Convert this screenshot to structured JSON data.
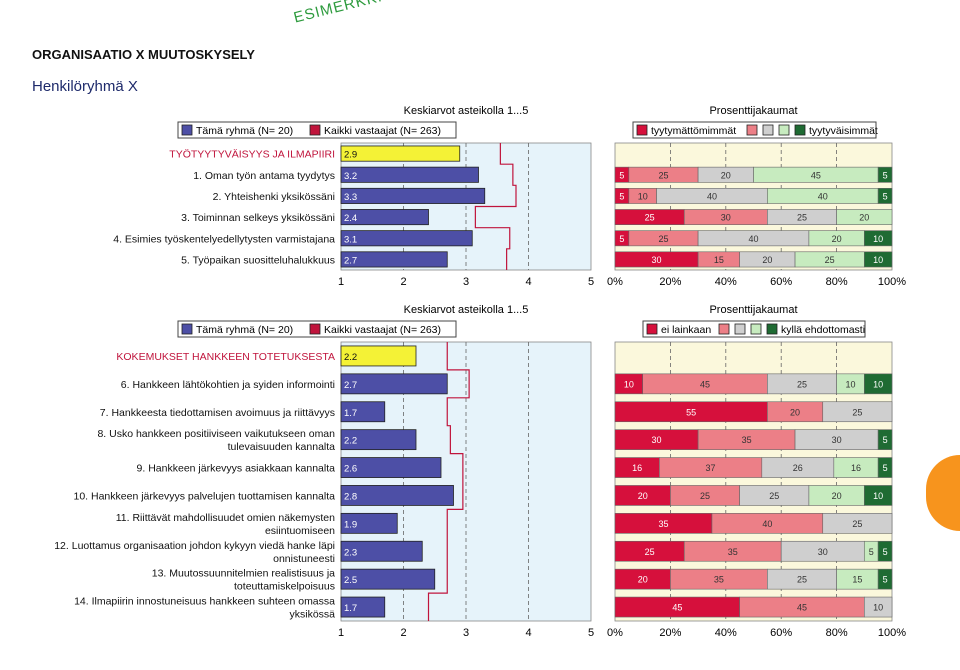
{
  "watermark": "ESIMERKKI",
  "title": "ORGANISAATIO X MUUTOSKYSELY",
  "subtitle": "Henkilöryhmä X",
  "colors": {
    "group_bar": "#4d4fa6",
    "section_bar": "#f4f236",
    "all_line": "#c0143c",
    "panel_bg": "#e6f3fa",
    "pct_panel_bg": "#fbf8dc",
    "seg1": "#d6103c",
    "seg2": "#ec7f87",
    "seg3": "#cfcfcf",
    "seg4": "#c7ebbf",
    "seg5": "#1f6b33"
  },
  "chart_data": [
    {
      "type": "bar",
      "title": "Keskiarvot asteikolla 1...5",
      "legend": [
        "Tämä ryhmä (N= 20)",
        "Kaikki vastaajat (N= 263)"
      ],
      "xlim": [
        1,
        5
      ],
      "ticks": [
        1,
        2,
        3,
        4,
        5
      ],
      "categories": [
        "TYÖTYYTYVÄISYYS JA ILMAPIIRI",
        "1. Oman työn antama tyydytys",
        "2. Yhteishenki yksikössäni",
        "3. Toiminnan selkeys yksikössäni",
        "4. Esimies työskentelyedellytysten varmistajana",
        "5. Työpaikan suositteluhalukkuus"
      ],
      "section_rows": [
        0
      ],
      "values": [
        2.9,
        3.2,
        3.3,
        2.4,
        3.1,
        2.7
      ],
      "all_respondents": [
        3.55,
        3.75,
        3.8,
        3.15,
        3.7,
        3.65
      ]
    },
    {
      "type": "bar",
      "stacked": true,
      "title": "Prosenttijakaumat",
      "legend": [
        "tyytymättömimmät",
        "",
        "",
        "",
        "tyytyväisimmät"
      ],
      "ticks": [
        "0%",
        "20%",
        "40%",
        "60%",
        "80%",
        "100%"
      ],
      "rows": [
        [],
        [
          5,
          25,
          20,
          45,
          5
        ],
        [
          5,
          10,
          40,
          40,
          5
        ],
        [
          25,
          30,
          25,
          20,
          0
        ],
        [
          5,
          25,
          40,
          20,
          10
        ],
        [
          30,
          15,
          20,
          25,
          10
        ]
      ]
    },
    {
      "type": "bar",
      "title": "Keskiarvot asteikolla 1...5",
      "legend": [
        "Tämä ryhmä (N= 20)",
        "Kaikki vastaajat (N= 263)"
      ],
      "xlim": [
        1,
        5
      ],
      "ticks": [
        1,
        2,
        3,
        4,
        5
      ],
      "categories": [
        "KOKEMUKSET HANKKEEN TOTETUKSESTA",
        "6. Hankkeen lähtökohtien ja syiden informointi",
        "7. Hankkeesta tiedottamisen avoimuus ja riittävyys",
        "8. Usko hankkeen positiiviseen vaikutukseen oman tulevaisuuden kannalta",
        "9. Hankkeen järkevyys asiakkaan kannalta",
        "10. Hankkeen järkevyys palvelujen tuottamisen kannalta",
        "11. Riittävät mahdollisuudet omien näkemysten esiintuomiseen",
        "12. Luottamus organisaation johdon kykyyn viedä hanke läpi onnistuneesti",
        "13. Muutossuunnitelmien realistisuus ja toteuttamiskelpoisuus",
        "14. Ilmapiirin innostuneisuus hankkeen suhteen omassa yksikössä"
      ],
      "section_rows": [
        0
      ],
      "values": [
        2.2,
        2.7,
        1.7,
        2.2,
        2.6,
        2.8,
        1.9,
        2.3,
        2.5,
        1.7
      ],
      "all_respondents": [
        2.7,
        3.05,
        2.7,
        2.75,
        2.95,
        2.95,
        2.7,
        2.7,
        2.7,
        2.4
      ]
    },
    {
      "type": "bar",
      "stacked": true,
      "title": "Prosenttijakaumat",
      "legend": [
        "ei lainkaan",
        "",
        "",
        "",
        "kyllä ehdottomasti"
      ],
      "ticks": [
        "0%",
        "20%",
        "40%",
        "60%",
        "80%",
        "100%"
      ],
      "rows": [
        [],
        [
          10,
          45,
          25,
          10,
          10
        ],
        [
          55,
          20,
          25,
          0,
          0
        ],
        [
          30,
          35,
          30,
          0,
          5
        ],
        [
          16,
          37,
          26,
          16,
          5
        ],
        [
          20,
          25,
          25,
          20,
          10
        ],
        [
          35,
          40,
          25,
          0,
          0
        ],
        [
          25,
          35,
          30,
          5,
          5
        ],
        [
          20,
          35,
          25,
          15,
          5
        ],
        [
          45,
          45,
          10,
          0,
          0
        ]
      ]
    }
  ]
}
